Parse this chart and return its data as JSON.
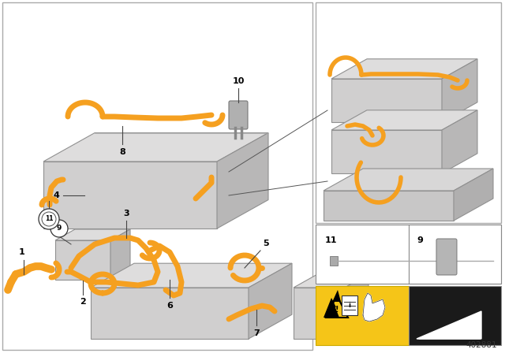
{
  "bg": "#ffffff",
  "orange": "#F5A020",
  "gray1": "#d4d3d3",
  "gray2": "#c0bfbf",
  "gray3": "#b0afaf",
  "gray_dark": "#909090",
  "part_number": "402881",
  "fig_width": 6.4,
  "fig_height": 4.48
}
